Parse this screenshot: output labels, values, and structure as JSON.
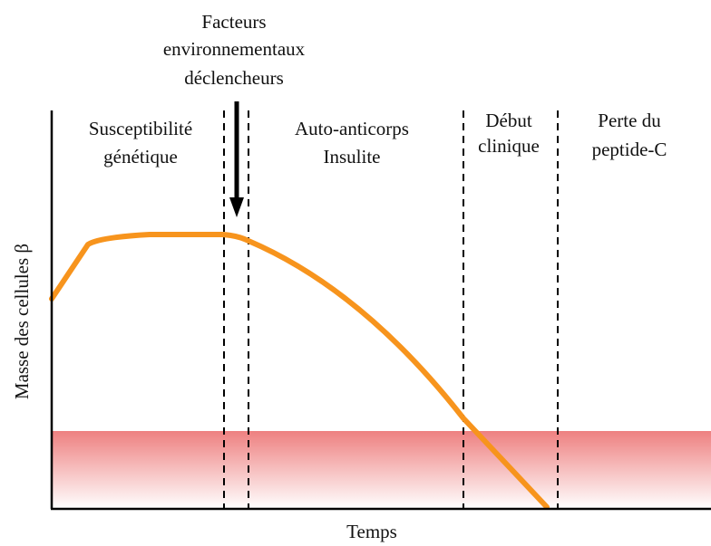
{
  "figure": {
    "trigger_label": [
      "Facteurs",
      "environnementaux",
      "déclencheurs"
    ],
    "phases": [
      {
        "lines": [
          "Susceptibilité",
          "génétique"
        ]
      },
      {
        "lines": [
          "Auto-anticorps",
          "Insulite"
        ]
      },
      {
        "lines": [
          "Début",
          "clinique"
        ]
      },
      {
        "lines": [
          "Perte du",
          "peptide-C"
        ]
      }
    ],
    "y_axis_label": "Masse des cellules β",
    "x_axis_label": "Temps"
  },
  "colors": {
    "curve": "#F7941D",
    "threshold_band_top": "#EE8080",
    "threshold_band_bottom": "#FFFFFF",
    "axis": "#000000"
  }
}
